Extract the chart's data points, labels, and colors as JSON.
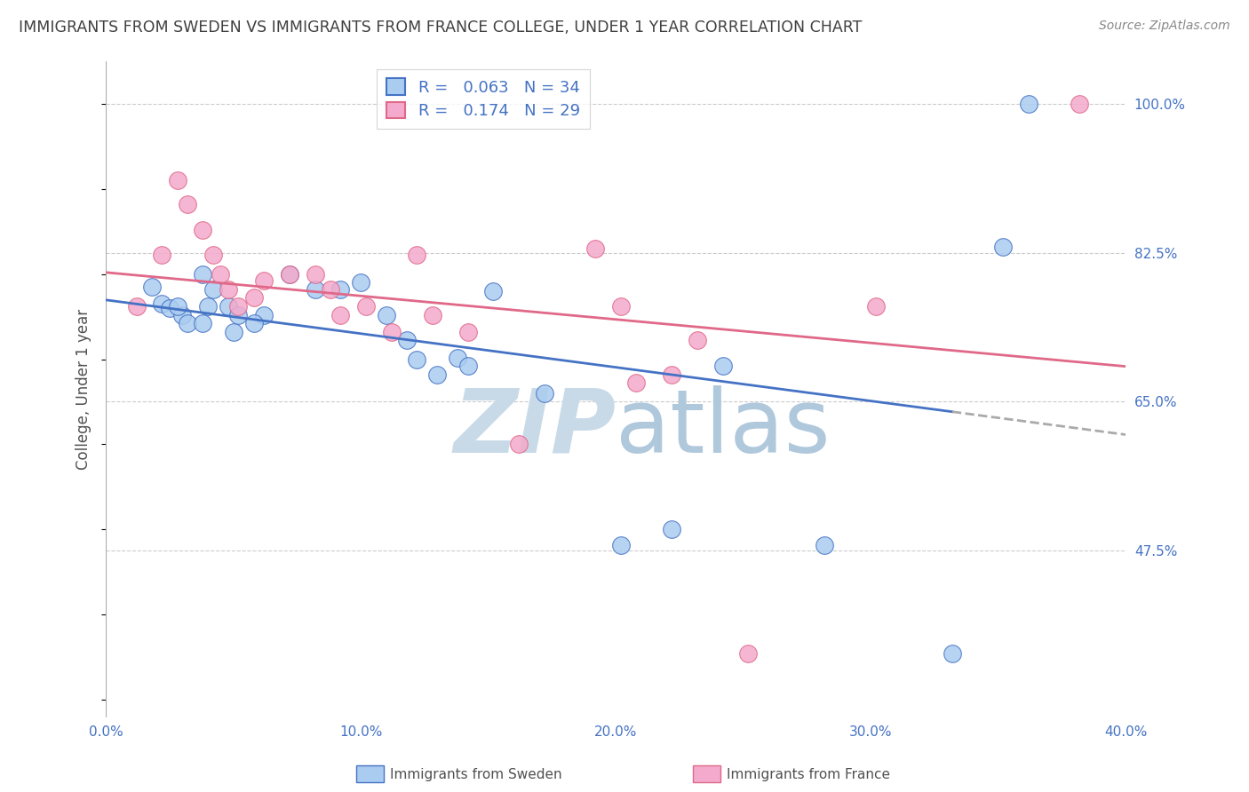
{
  "title": "IMMIGRANTS FROM SWEDEN VS IMMIGRANTS FROM FRANCE COLLEGE, UNDER 1 YEAR CORRELATION CHART",
  "source": "Source: ZipAtlas.com",
  "ylabel": "College, Under 1 year",
  "xlim": [
    0.0,
    0.4
  ],
  "ylim": [
    0.28,
    1.05
  ],
  "R_sweden": 0.063,
  "N_sweden": 34,
  "R_france": 0.174,
  "N_france": 29,
  "color_sweden": "#aaccf0",
  "color_france": "#f4aacc",
  "line_color_sweden": "#4472c4",
  "line_color_france": "#e06888",
  "dashed_line_color": "#aaaaaa",
  "grid_color": "#cccccc",
  "title_color": "#404040",
  "source_color": "#888888",
  "background_color": "#ffffff",
  "sweden_x": [
    0.018,
    0.022,
    0.038,
    0.042,
    0.025,
    0.03,
    0.032,
    0.028,
    0.04,
    0.038,
    0.048,
    0.052,
    0.05,
    0.062,
    0.058,
    0.072,
    0.082,
    0.092,
    0.1,
    0.11,
    0.118,
    0.122,
    0.13,
    0.138,
    0.142,
    0.152,
    0.172,
    0.202,
    0.222,
    0.242,
    0.282,
    0.332,
    0.352,
    0.362
  ],
  "sweden_y": [
    0.785,
    0.765,
    0.8,
    0.782,
    0.76,
    0.752,
    0.742,
    0.762,
    0.762,
    0.742,
    0.762,
    0.752,
    0.732,
    0.752,
    0.742,
    0.8,
    0.782,
    0.782,
    0.79,
    0.752,
    0.722,
    0.7,
    0.682,
    0.702,
    0.692,
    0.78,
    0.66,
    0.482,
    0.5,
    0.692,
    0.482,
    0.355,
    0.832,
    1.0
  ],
  "france_x": [
    0.012,
    0.022,
    0.028,
    0.032,
    0.038,
    0.042,
    0.045,
    0.048,
    0.052,
    0.062,
    0.058,
    0.072,
    0.082,
    0.088,
    0.092,
    0.102,
    0.112,
    0.122,
    0.128,
    0.142,
    0.162,
    0.192,
    0.202,
    0.208,
    0.222,
    0.232,
    0.252,
    0.302,
    0.382
  ],
  "france_y": [
    0.762,
    0.822,
    0.91,
    0.882,
    0.852,
    0.822,
    0.8,
    0.782,
    0.762,
    0.792,
    0.772,
    0.8,
    0.8,
    0.782,
    0.752,
    0.762,
    0.732,
    0.822,
    0.752,
    0.732,
    0.6,
    0.83,
    0.762,
    0.672,
    0.682,
    0.722,
    0.355,
    0.762,
    1.0
  ],
  "yticks": [
    0.475,
    0.65,
    0.825,
    1.0
  ],
  "ytick_labels": [
    "47.5%",
    "65.0%",
    "82.5%",
    "100.0%"
  ],
  "xticks": [
    0.0,
    0.1,
    0.2,
    0.3,
    0.4
  ],
  "xtick_labels": [
    "0.0%",
    "10.0%",
    "20.0%",
    "30.0%",
    "40.0%"
  ]
}
